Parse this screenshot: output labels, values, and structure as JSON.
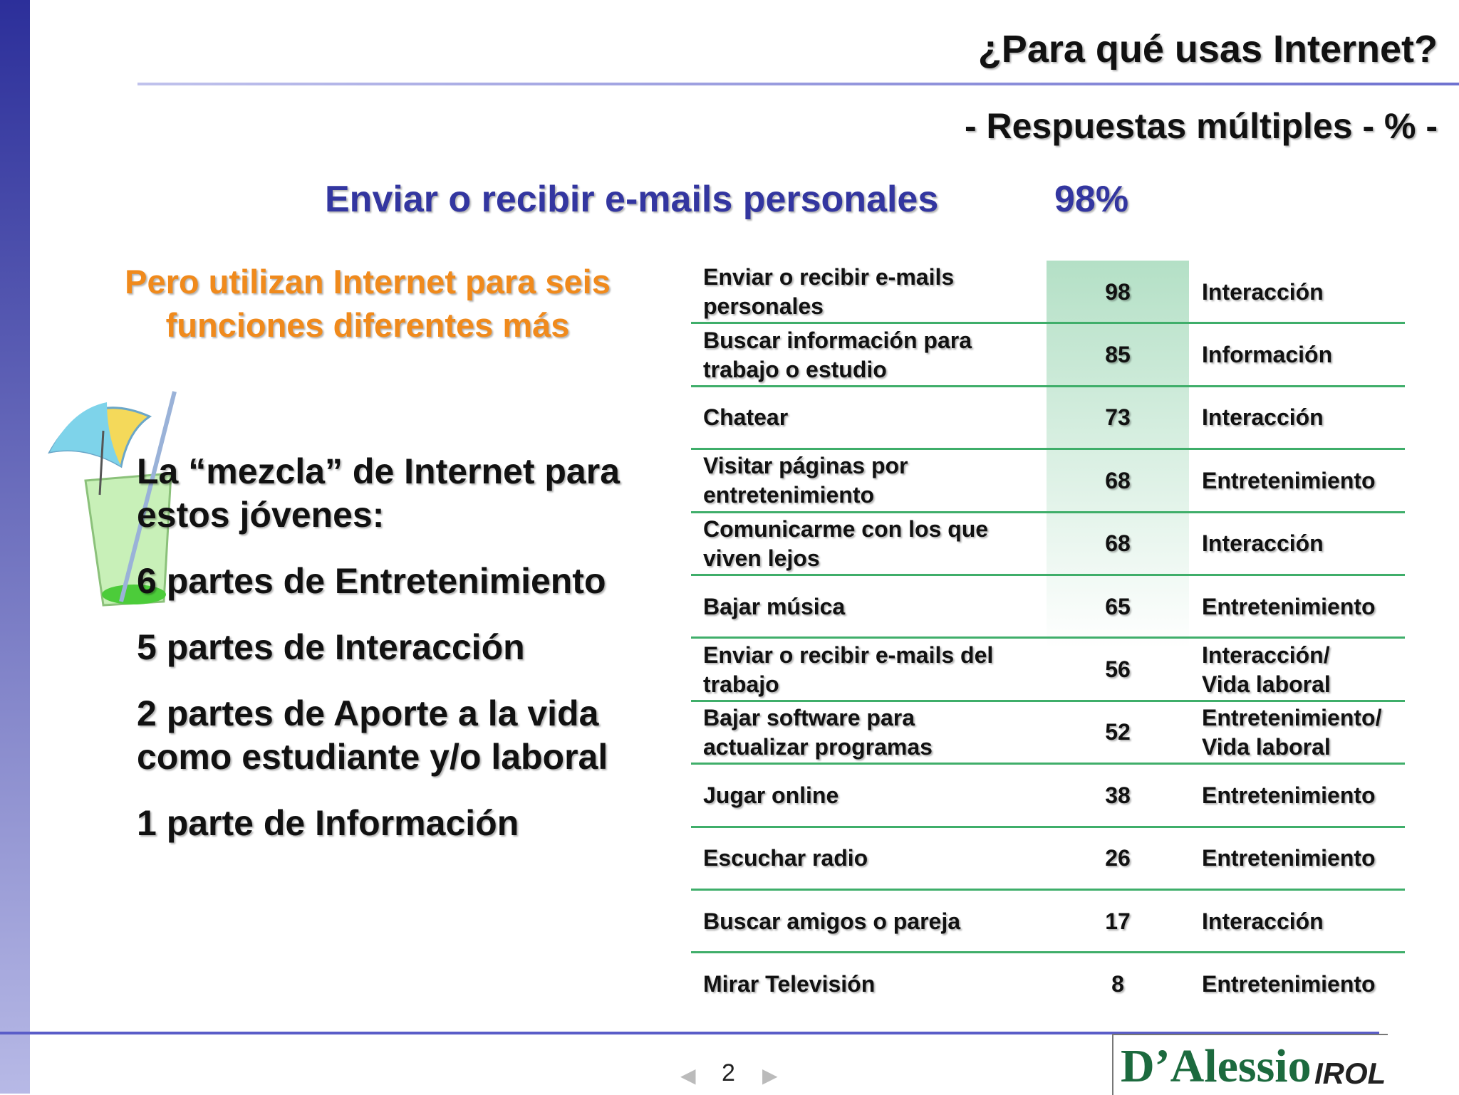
{
  "header": {
    "title": "¿Para qué usas Internet?",
    "subtitle": "- Respuestas múltiples - % -"
  },
  "headline": {
    "label": "Enviar o recibir e-mails personales",
    "value": "98%"
  },
  "intro": [
    "Pero utilizan Internet para seis",
    "funciones diferentes más"
  ],
  "mix": {
    "heading": [
      "La “mezcla” de Internet para",
      "estos jóvenes:"
    ],
    "items": [
      [
        "6 partes de Entretenimiento"
      ],
      [
        "5 partes de Interacción"
      ],
      [
        "2 partes de Aporte a la vida",
        "como estudiante y/o laboral"
      ],
      [
        "1 parte de Información"
      ]
    ]
  },
  "table": {
    "rows": [
      [
        [
          "Enviar o recibir e-mails",
          "personales"
        ],
        "98",
        [
          "Interacción"
        ]
      ],
      [
        [
          "Buscar información para",
          "trabajo o estudio"
        ],
        "85",
        [
          "Información"
        ]
      ],
      [
        [
          "Chatear"
        ],
        "73",
        [
          "Interacción"
        ]
      ],
      [
        [
          "Visitar páginas por",
          "entretenimiento"
        ],
        "68",
        [
          "Entretenimiento"
        ]
      ],
      [
        [
          "Comunicarme con los que",
          "viven lejos"
        ],
        "68",
        [
          "Interacción"
        ]
      ],
      [
        [
          "Bajar música"
        ],
        "65",
        [
          "Entretenimiento"
        ]
      ],
      [
        [
          "Enviar o recibir e-mails del",
          "trabajo"
        ],
        "56",
        [
          "Interacción/",
          "Vida laboral"
        ]
      ],
      [
        [
          "Bajar software para",
          "actualizar programas"
        ],
        "52",
        [
          "Entretenimiento/",
          "Vida laboral"
        ]
      ],
      [
        [
          "Jugar online"
        ],
        "38",
        [
          "Entretenimiento"
        ]
      ],
      [
        [
          "Escuchar radio"
        ],
        "26",
        [
          "Entretenimiento"
        ]
      ],
      [
        [
          "Buscar amigos o pareja"
        ],
        "17",
        [
          "Interacción"
        ]
      ],
      [
        [
          "Mirar Televisión"
        ],
        "8",
        [
          "Entretenimiento"
        ]
      ]
    ]
  },
  "footer": {
    "page": "2",
    "logo": "D’Alessio",
    "logo_suffix": "IROL"
  }
}
